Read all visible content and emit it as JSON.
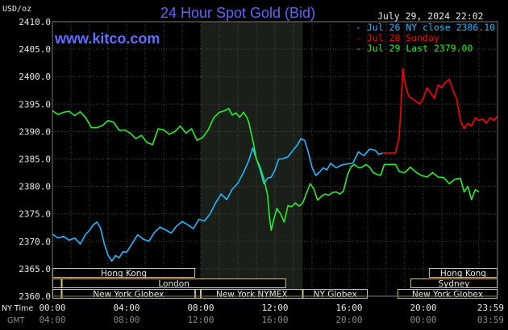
{
  "chart_data": {
    "type": "line",
    "title": "24 Hour Spot Gold (Bid)",
    "units": "USD/oz",
    "timestamp": "July 29, 2024 22:02",
    "watermark": "www.kitco.com",
    "ylim": [
      2360,
      2410
    ],
    "yticks": [
      "2410.0",
      "2405.0",
      "2400.0",
      "2395.0",
      "2390.0",
      "2385.0",
      "2380.0",
      "2375.0",
      "2370.0",
      "2365.0",
      "2360.0"
    ],
    "xlim": [
      0,
      24
    ],
    "xticks_ny": [
      "00:00",
      "04:00",
      "08:00",
      "12:00",
      "16:00",
      "20:00",
      "23:59"
    ],
    "xticks_gmt": [
      "04:00",
      "08:00",
      "12:00",
      "16:00",
      "20:00",
      "00:00",
      "03:59"
    ],
    "row_labels": [
      "NY Time",
      "GMT"
    ],
    "grid": true,
    "highlight_band": [
      8.0,
      13.5
    ],
    "series": [
      {
        "name": "Jul 26 NY close 2386.10",
        "color": "#21b9ff",
        "points": [
          [
            0,
            2371.3
          ],
          [
            0.3,
            2370.6
          ],
          [
            0.6,
            2370.9
          ],
          [
            0.9,
            2370.2
          ],
          [
            1.2,
            2370.6
          ],
          [
            1.5,
            2369.5
          ],
          [
            1.8,
            2371.3
          ],
          [
            2.0,
            2372.0
          ],
          [
            2.2,
            2373.0
          ],
          [
            2.4,
            2373.5
          ],
          [
            2.6,
            2372.4
          ],
          [
            2.8,
            2369.5
          ],
          [
            3.0,
            2367.5
          ],
          [
            3.2,
            2366.4
          ],
          [
            3.4,
            2367.4
          ],
          [
            3.6,
            2367.0
          ],
          [
            3.8,
            2368.1
          ],
          [
            4.0,
            2368.0
          ],
          [
            4.3,
            2369.6
          ],
          [
            4.6,
            2371.2
          ],
          [
            4.9,
            2370.4
          ],
          [
            5.2,
            2370.0
          ],
          [
            5.5,
            2371.6
          ],
          [
            5.8,
            2372.6
          ],
          [
            6.1,
            2372.1
          ],
          [
            6.4,
            2371.5
          ],
          [
            6.7,
            2372.8
          ],
          [
            7.0,
            2373.6
          ],
          [
            7.3,
            2373.0
          ],
          [
            7.6,
            2372.3
          ],
          [
            7.9,
            2374.0
          ],
          [
            8.2,
            2373.7
          ],
          [
            8.5,
            2375.0
          ],
          [
            8.8,
            2377.0
          ],
          [
            9.1,
            2378.6
          ],
          [
            9.4,
            2377.6
          ],
          [
            9.7,
            2379.5
          ],
          [
            10.0,
            2380.6
          ],
          [
            10.3,
            2382.5
          ],
          [
            10.6,
            2384.8
          ],
          [
            10.8,
            2387.0
          ],
          [
            11.0,
            2385.0
          ],
          [
            11.2,
            2383.0
          ],
          [
            11.4,
            2380.5
          ],
          [
            11.6,
            2381.5
          ],
          [
            11.8,
            2381.7
          ],
          [
            12.0,
            2383.0
          ],
          [
            12.2,
            2385.0
          ],
          [
            12.4,
            2385.0
          ],
          [
            12.7,
            2385.4
          ],
          [
            13.0,
            2386.7
          ],
          [
            13.2,
            2387.5
          ],
          [
            13.4,
            2388.7
          ],
          [
            13.6,
            2388.4
          ],
          [
            13.8,
            2386.2
          ],
          [
            14.0,
            2383.5
          ],
          [
            14.2,
            2382.0
          ],
          [
            14.4,
            2382.6
          ],
          [
            14.6,
            2383.4
          ],
          [
            14.8,
            2383.0
          ],
          [
            15.0,
            2384.2
          ],
          [
            15.3,
            2383.4
          ],
          [
            15.6,
            2383.9
          ],
          [
            15.9,
            2384.1
          ],
          [
            16.2,
            2384.2
          ],
          [
            16.5,
            2386.3
          ],
          [
            16.8,
            2385.6
          ],
          [
            17.1,
            2386.8
          ],
          [
            17.4,
            2386.6
          ],
          [
            17.6,
            2385.8
          ],
          [
            17.8,
            2386.1
          ]
        ]
      },
      {
        "name": "Jul 28 Sunday",
        "color": "#ff0000",
        "points": [
          [
            17.8,
            2386.1
          ],
          [
            18.5,
            2386.1
          ],
          [
            18.7,
            2389.0
          ],
          [
            18.8,
            2395.0
          ],
          [
            18.9,
            2401.5
          ],
          [
            19.0,
            2399.0
          ],
          [
            19.2,
            2396.5
          ],
          [
            19.4,
            2396.0
          ],
          [
            19.6,
            2395.5
          ],
          [
            19.8,
            2395.0
          ],
          [
            20.0,
            2396.0
          ],
          [
            20.2,
            2398.0
          ],
          [
            20.4,
            2397.0
          ],
          [
            20.6,
            2396.0
          ],
          [
            20.8,
            2398.5
          ],
          [
            21.0,
            2398.0
          ],
          [
            21.2,
            2399.0
          ],
          [
            21.4,
            2399.5
          ],
          [
            21.6,
            2397.5
          ],
          [
            21.8,
            2396.0
          ],
          [
            22.0,
            2392.0
          ],
          [
            22.2,
            2390.5
          ],
          [
            22.4,
            2391.5
          ],
          [
            22.6,
            2391.0
          ],
          [
            22.8,
            2392.5
          ],
          [
            23.0,
            2392.0
          ],
          [
            23.2,
            2392.3
          ],
          [
            23.4,
            2391.5
          ],
          [
            23.6,
            2392.5
          ],
          [
            23.8,
            2392.0
          ],
          [
            24.0,
            2392.8
          ]
        ]
      },
      {
        "name": "Jul 29 Last 2379.00",
        "color": "#27ee27",
        "points": [
          [
            0,
            2393.8
          ],
          [
            0.3,
            2393.1
          ],
          [
            0.6,
            2393.5
          ],
          [
            0.9,
            2393.7
          ],
          [
            1.2,
            2392.9
          ],
          [
            1.5,
            2393.6
          ],
          [
            1.8,
            2392.5
          ],
          [
            2.1,
            2390.7
          ],
          [
            2.4,
            2390.7
          ],
          [
            2.7,
            2391.1
          ],
          [
            3.0,
            2392.0
          ],
          [
            3.3,
            2391.7
          ],
          [
            3.6,
            2390.2
          ],
          [
            3.9,
            2390.3
          ],
          [
            4.2,
            2389.7
          ],
          [
            4.5,
            2388.7
          ],
          [
            4.8,
            2389.3
          ],
          [
            5.1,
            2388.0
          ],
          [
            5.4,
            2387.6
          ],
          [
            5.7,
            2390.5
          ],
          [
            6.0,
            2390.3
          ],
          [
            6.3,
            2389.5
          ],
          [
            6.6,
            2390.0
          ],
          [
            6.9,
            2391.0
          ],
          [
            7.2,
            2389.7
          ],
          [
            7.5,
            2390.5
          ],
          [
            7.8,
            2388.4
          ],
          [
            8.1,
            2388.9
          ],
          [
            8.4,
            2390.3
          ],
          [
            8.7,
            2392.5
          ],
          [
            9.0,
            2393.5
          ],
          [
            9.3,
            2393.8
          ],
          [
            9.5,
            2394.2
          ],
          [
            9.7,
            2393.0
          ],
          [
            9.9,
            2393.4
          ],
          [
            10.1,
            2392.6
          ],
          [
            10.3,
            2393.5
          ],
          [
            10.5,
            2392.5
          ],
          [
            10.6,
            2391.5
          ],
          [
            10.8,
            2388.5
          ],
          [
            11.0,
            2385.0
          ],
          [
            11.2,
            2383.5
          ],
          [
            11.4,
            2381.4
          ],
          [
            11.6,
            2378.5
          ],
          [
            11.7,
            2374.5
          ],
          [
            11.8,
            2372.0
          ],
          [
            11.9,
            2373.5
          ],
          [
            12.1,
            2376.0
          ],
          [
            12.3,
            2375.0
          ],
          [
            12.5,
            2373.5
          ],
          [
            12.7,
            2376.5
          ],
          [
            12.9,
            2376.3
          ],
          [
            13.1,
            2377.0
          ],
          [
            13.3,
            2376.4
          ],
          [
            13.5,
            2377.0
          ],
          [
            13.7,
            2378.8
          ],
          [
            13.9,
            2380.5
          ],
          [
            14.1,
            2379.5
          ],
          [
            14.3,
            2377.5
          ],
          [
            14.5,
            2378.2
          ],
          [
            14.7,
            2378.6
          ],
          [
            14.9,
            2378.4
          ],
          [
            15.1,
            2378.9
          ],
          [
            15.3,
            2379.0
          ],
          [
            15.5,
            2378.6
          ],
          [
            15.7,
            2379.2
          ],
          [
            15.9,
            2382.0
          ],
          [
            16.1,
            2383.6
          ],
          [
            16.3,
            2384.0
          ],
          [
            16.5,
            2383.4
          ],
          [
            16.7,
            2383.5
          ],
          [
            16.9,
            2384.0
          ],
          [
            17.1,
            2383.5
          ],
          [
            17.3,
            2382.5
          ],
          [
            17.5,
            2382.2
          ],
          [
            17.7,
            2382.0
          ],
          [
            17.9,
            2384.0
          ],
          [
            18.2,
            2384.0
          ],
          [
            18.5,
            2384.0
          ],
          [
            18.7,
            2382.7
          ],
          [
            19.0,
            2382.5
          ],
          [
            19.3,
            2383.5
          ],
          [
            19.6,
            2382.6
          ],
          [
            19.9,
            2382.0
          ],
          [
            20.2,
            2381.7
          ],
          [
            20.5,
            2382.5
          ],
          [
            20.8,
            2381.7
          ],
          [
            21.1,
            2381.6
          ],
          [
            21.4,
            2380.5
          ],
          [
            21.7,
            2381.3
          ],
          [
            22.0,
            2381.5
          ],
          [
            22.2,
            2379.0
          ],
          [
            22.4,
            2380.0
          ],
          [
            22.6,
            2377.6
          ],
          [
            22.8,
            2379.4
          ],
          [
            23.0,
            2379.0
          ]
        ]
      }
    ],
    "sessions": [
      {
        "name": "Hong Kong",
        "row": 0,
        "start": 0,
        "end": 7.7
      },
      {
        "name": "Hong Kong",
        "row": 0,
        "start": 20.3,
        "end": 24
      },
      {
        "name": "",
        "row": 1,
        "start": 0,
        "end": 0.5
      },
      {
        "name": "London",
        "row": 1,
        "start": 0.5,
        "end": 12.6
      },
      {
        "name": "Sydney",
        "row": 1,
        "start": 19.3,
        "end": 24
      },
      {
        "name": "",
        "row": 2,
        "start": 0,
        "end": 0.5
      },
      {
        "name": "New York Globex",
        "row": 2,
        "start": 0.5,
        "end": 7.7
      },
      {
        "name": "",
        "row": 2,
        "start": 7.7,
        "end": 8.0
      },
      {
        "name": "New York NYMEX",
        "row": 2,
        "start": 8.0,
        "end": 13.5
      },
      {
        "name": "NY Globex",
        "row": 2,
        "start": 13.5,
        "end": 17.0
      },
      {
        "name": "New York Globex",
        "row": 2,
        "start": 18.6,
        "end": 24
      }
    ]
  }
}
